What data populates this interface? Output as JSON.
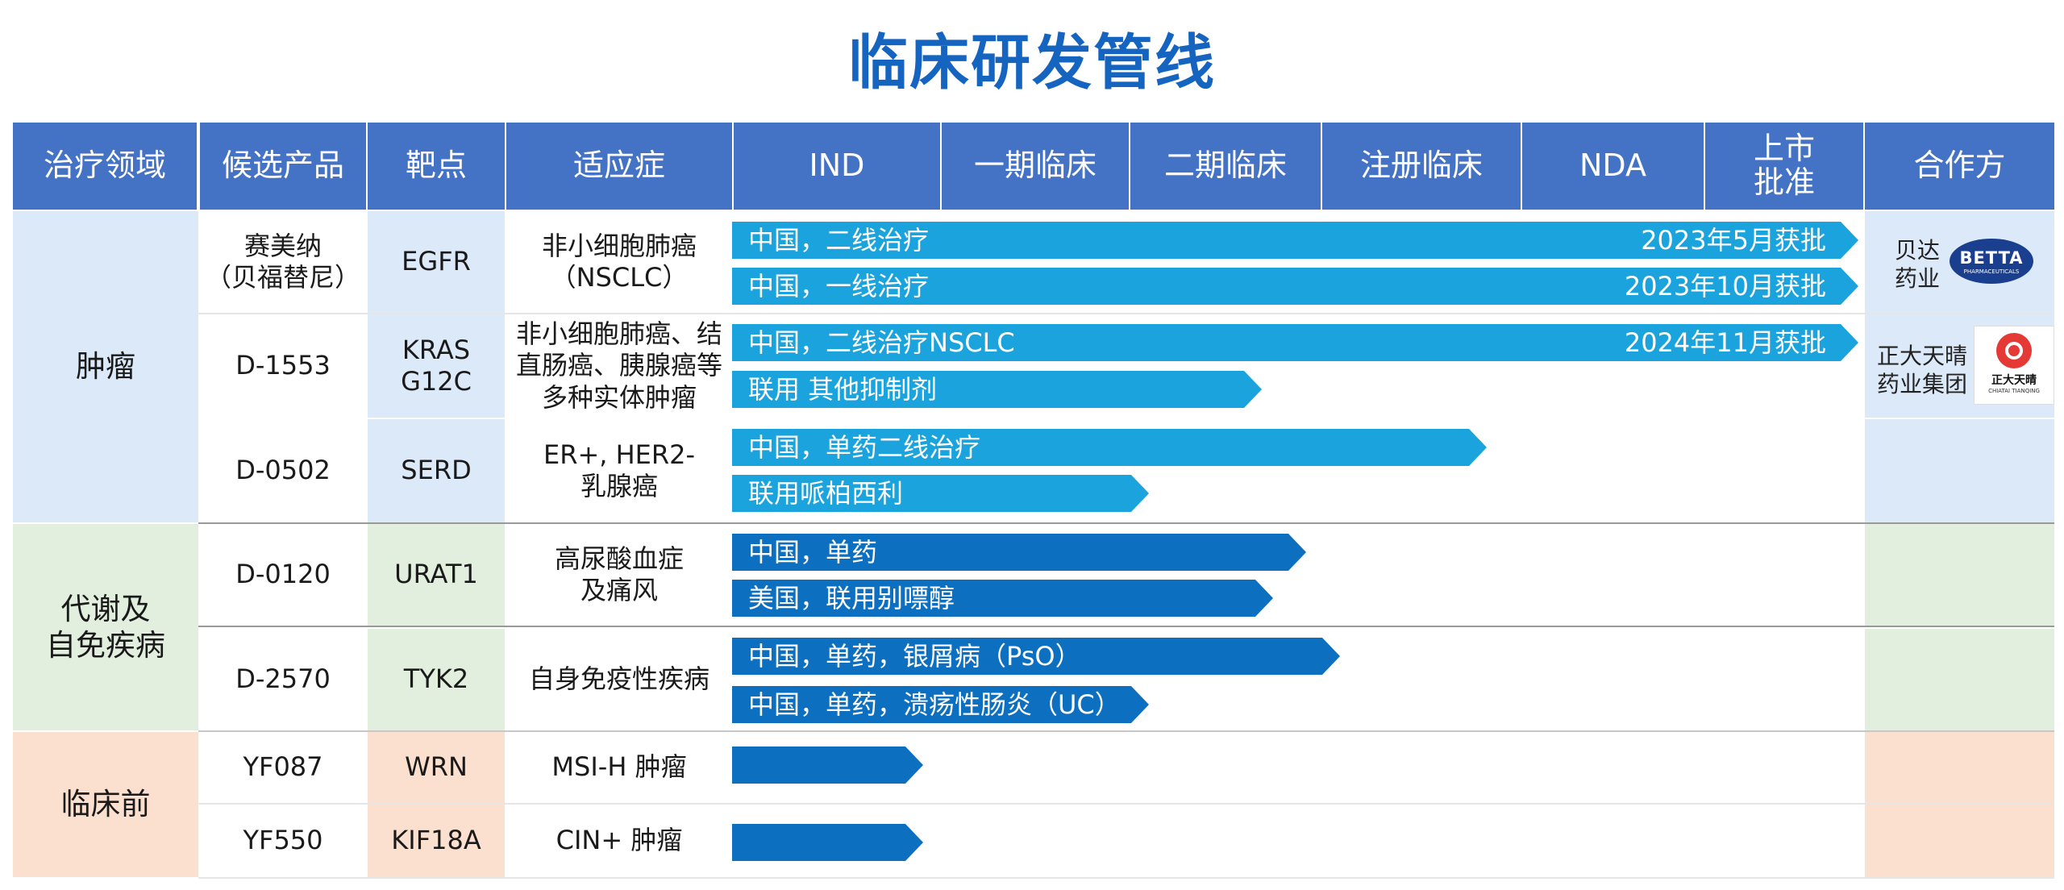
{
  "title": "临床研发管线",
  "headers": [
    "治疗领域",
    "候选产品",
    "靶点",
    "适应症",
    "IND",
    "一期临床",
    "二期临床",
    "注册临床",
    "NDA",
    "上市\n批准",
    "合作方"
  ],
  "areas": [
    {
      "label": "肿瘤",
      "color": "#dce9f8"
    },
    {
      "label": "代谢及\n自免疾病",
      "color": "#e2efdf"
    },
    {
      "label": "临床前",
      "color": "#fbe0cf"
    }
  ],
  "products": [
    {
      "product": "赛美纳\n（贝福替尼）",
      "target": "EGFR",
      "indication": "非小细胞肺癌\n（NSCLC）"
    },
    {
      "product": "D-1553",
      "target": "KRAS\nG12C",
      "indication": "非小细胞肺癌、结\n直肠癌、胰腺癌等\n多种实体肿瘤"
    },
    {
      "product": "D-0502",
      "target": "SERD",
      "indication": "ER+, HER2-\n乳腺癌"
    },
    {
      "product": "D-0120",
      "target": "URAT1",
      "indication": "高尿酸血症\n及痛风"
    },
    {
      "product": "D-2570",
      "target": "TYK2",
      "indication": "自身免疫性疾病"
    },
    {
      "product": "YF087",
      "target": "WRN",
      "indication": "MSI-H 肿瘤"
    },
    {
      "product": "YF550",
      "target": "KIF18A",
      "indication": "CIN+ 肿瘤"
    }
  ],
  "programs": [
    {
      "label": "中国，二线治疗",
      "note": "2023年5月获批",
      "stage_progress": 1.0,
      "color": "#1aa3dc"
    },
    {
      "label": "中国，一线治疗",
      "note": "2023年10月获批",
      "stage_progress": 1.0,
      "color": "#1aa3dc"
    },
    {
      "label": "中国，二线治疗NSCLC",
      "note": "2024年11月获批",
      "stage_progress": 1.0,
      "color": "#1aa3dc"
    },
    {
      "label": "联用 其他抑制剂",
      "note": "",
      "stage_progress": 0.47,
      "color": "#1aa3dc"
    },
    {
      "label": "中国，单药二线治疗",
      "note": "",
      "stage_progress": 0.67,
      "color": "#1aa3dc"
    },
    {
      "label": "联用哌柏西利",
      "note": "",
      "stage_progress": 0.37,
      "color": "#1aa3dc"
    },
    {
      "label": "中国，单药",
      "note": "",
      "stage_progress": 0.51,
      "color": "#0d6fc0"
    },
    {
      "label": "美国，联用别嘌醇",
      "note": "",
      "stage_progress": 0.48,
      "color": "#0d6fc0"
    },
    {
      "label": "中国，单药，银屑病（PsO）",
      "note": "",
      "stage_progress": 0.54,
      "color": "#0d6fc0"
    },
    {
      "label": "中国，单药，溃疡性肠炎（UC）",
      "note": "",
      "stage_progress": 0.37,
      "color": "#0d6fc0"
    },
    {
      "label": "",
      "note": "",
      "stage_progress": 0.17,
      "color": "#0d6fc0"
    },
    {
      "label": "",
      "note": "",
      "stage_progress": 0.17,
      "color": "#0d6fc0"
    }
  ],
  "partners": [
    {
      "name": "贝达\n药业",
      "logo_text": "BETTA",
      "logo_sub": "PHARMACEUTICALS"
    },
    {
      "name": "正大天晴\n药业集团",
      "logo_text": "正大天晴",
      "logo_sub": "CHIATAI TIANQING"
    }
  ],
  "colors": {
    "header": "#4472c4",
    "title": "#1565c0",
    "arrow_light": "#1aa3dc",
    "arrow_dark": "#0d6fc0"
  }
}
